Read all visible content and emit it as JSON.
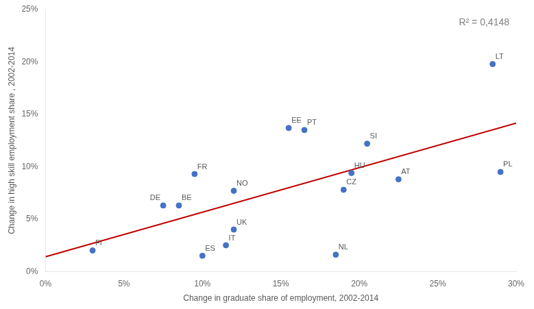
{
  "chart_data": {
    "type": "scatter",
    "xlabel": "Change in graduate share of employment, 2002-2014",
    "ylabel": "Change in high skill employment share , 2002-2014",
    "annotations": [
      {
        "text": "R² = 0,4148"
      }
    ],
    "series": [
      {
        "type": "scatter",
        "color": "#4472C4",
        "labels": [
          "FI",
          "DE",
          "BE",
          "ES",
          "FR",
          "NO",
          "UK",
          "IT",
          "EE",
          "PT",
          "NL",
          "HU",
          "CZ",
          "SI",
          "AT",
          "LT",
          "PL"
        ],
        "x": [
          0.03,
          0.075,
          0.085,
          0.1,
          0.095,
          0.12,
          0.12,
          0.115,
          0.155,
          0.165,
          0.185,
          0.195,
          0.19,
          0.205,
          0.225,
          0.285,
          0.29
        ],
        "values": [
          0.02,
          0.063,
          0.063,
          0.015,
          0.093,
          0.077,
          0.04,
          0.025,
          0.137,
          0.135,
          0.016,
          0.094,
          0.078,
          0.122,
          0.088,
          0.198,
          0.095
        ]
      },
      {
        "type": "line",
        "color": "#C00000",
        "x": [
          0.0,
          0.3
        ],
        "values": [
          0.01403617,
          0.14159424
        ]
      }
    ],
    "xlim": [
      0.0,
      0.3
    ],
    "ylim": [
      0.0,
      0.25
    ],
    "xticks": [
      {
        "value": 0.0,
        "label": "0%"
      },
      {
        "value": 0.05,
        "label": "5%"
      },
      {
        "value": 0.1,
        "label": "10%"
      },
      {
        "value": 0.15,
        "label": "15%"
      },
      {
        "value": 0.2,
        "label": "20%"
      },
      {
        "value": 0.25,
        "label": "25%"
      },
      {
        "value": 0.3,
        "label": "30%"
      }
    ],
    "yticks": [
      {
        "value": 0.0,
        "label": "0%"
      },
      {
        "value": 0.05,
        "label": "5%"
      },
      {
        "value": 0.1,
        "label": "10%"
      },
      {
        "value": 0.15,
        "label": "15%"
      },
      {
        "value": 0.2,
        "label": "20%"
      },
      {
        "value": 0.25,
        "label": "25%"
      }
    ],
    "grid": false
  }
}
